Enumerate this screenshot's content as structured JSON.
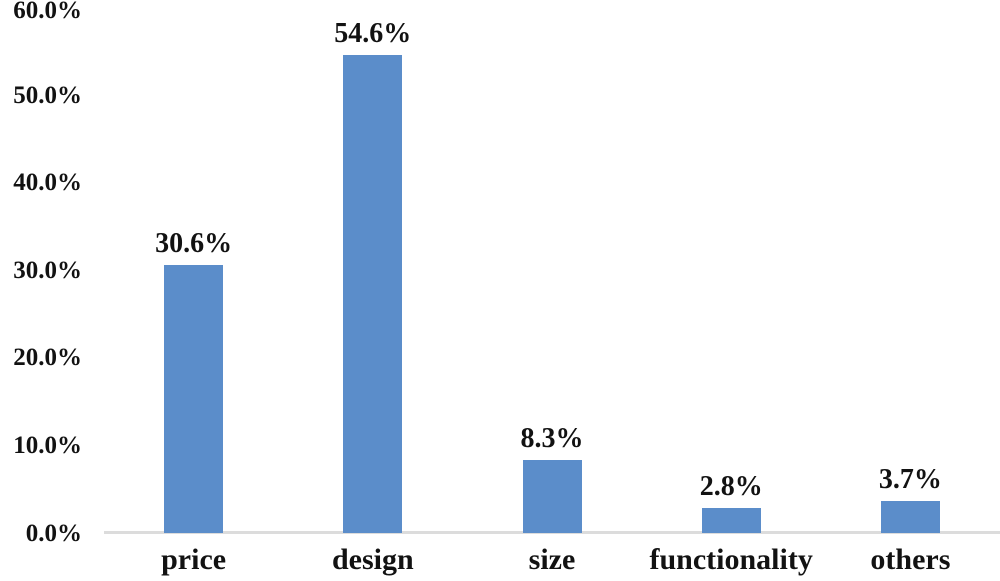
{
  "chart_data": {
    "type": "bar",
    "title": "",
    "xlabel": "",
    "ylabel": "",
    "categories": [
      "price",
      "design",
      "size",
      "functionality",
      "others"
    ],
    "values": [
      30.6,
      54.6,
      8.3,
      2.8,
      3.7
    ],
    "data_labels": [
      "30.6%",
      "54.6%",
      "8.3%",
      "2.8%",
      "3.7%"
    ],
    "y_ticks": [
      {
        "value": 0,
        "label": "0.0%"
      },
      {
        "value": 10,
        "label": "10.0%"
      },
      {
        "value": 20,
        "label": "20.0%"
      },
      {
        "value": 30,
        "label": "30.0%"
      },
      {
        "value": 40,
        "label": "40.0%"
      },
      {
        "value": 50,
        "label": "50.0%"
      },
      {
        "value": 60,
        "label": "60.0%"
      }
    ],
    "ylim": [
      0,
      60
    ],
    "grid": false,
    "legend": false,
    "bar_color": "#5b8dca",
    "axis_line_color": "#dcdcdc",
    "text_color": "#121212"
  }
}
